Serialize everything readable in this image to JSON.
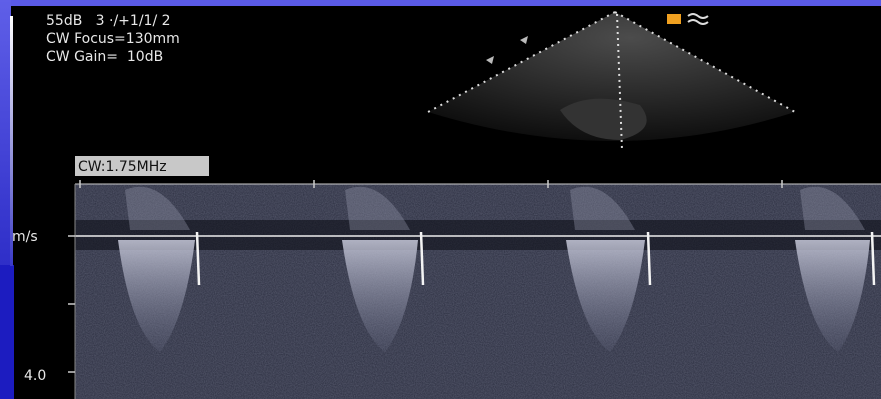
{
  "header": {
    "lines": [
      "55dB   3 ·/+1/1/ 2",
      "CW Focus=130mm",
      "CW Gain=  10dB"
    ]
  },
  "doppler": {
    "mode_label": "CW:1.75MHz",
    "unit_label": "m/s",
    "scale_label": "4.0"
  }
}
